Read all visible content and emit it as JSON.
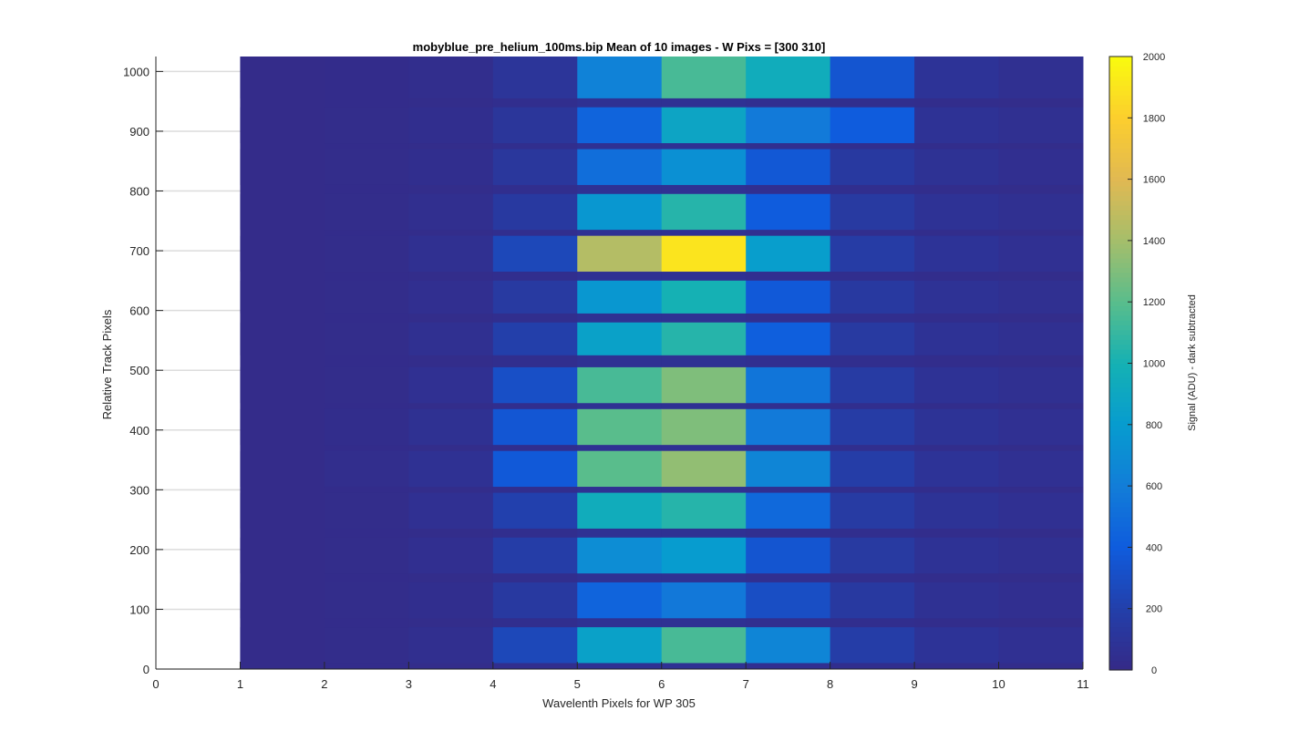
{
  "chart_data": {
    "type": "heatmap",
    "title": "mobyblue_pre_helium_100ms.bip  Mean of 10 images - W Pixs = [300  310]",
    "xlabel": "Wavelenth Pixels for WP 305",
    "ylabel": "Relative Track Pixels",
    "colorbar_label": "Signal (ADU) - dark subtracted",
    "xlim": [
      0,
      11
    ],
    "ylim": [
      0,
      1025
    ],
    "clim": [
      0,
      2000
    ],
    "colormap": "parula",
    "grid": "horizontal",
    "xticks": [
      "0",
      "1",
      "2",
      "3",
      "4",
      "5",
      "6",
      "7",
      "8",
      "9",
      "10",
      "11"
    ],
    "yticks": [
      "0",
      "100",
      "200",
      "300",
      "400",
      "500",
      "600",
      "700",
      "800",
      "900",
      "1000"
    ],
    "colorbar_ticks": [
      "0",
      "200",
      "400",
      "600",
      "800",
      "1000",
      "1200",
      "1400",
      "1600",
      "1800",
      "2000"
    ],
    "columns": [
      {
        "x_start": 1,
        "x_end": 2
      },
      {
        "x_start": 2,
        "x_end": 3
      },
      {
        "x_start": 3,
        "x_end": 4
      },
      {
        "x_start": 4,
        "x_end": 5
      },
      {
        "x_start": 5,
        "x_end": 6
      },
      {
        "x_start": 6,
        "x_end": 7
      },
      {
        "x_start": 7,
        "x_end": 8
      },
      {
        "x_start": 8,
        "x_end": 9
      },
      {
        "x_start": 9,
        "x_end": 10
      },
      {
        "x_start": 10,
        "x_end": 11
      }
    ],
    "background_values": [
      15,
      20,
      25,
      40,
      70,
      70,
      50,
      40,
      30,
      25
    ],
    "tracks": [
      {
        "y_start": 10,
        "y_end": 70,
        "values": [
          15,
          25,
          45,
          260,
          850,
          1150,
          650,
          180,
          90,
          60
        ]
      },
      {
        "y_start": 85,
        "y_end": 145,
        "values": [
          15,
          25,
          40,
          140,
          450,
          570,
          300,
          140,
          70,
          50
        ]
      },
      {
        "y_start": 160,
        "y_end": 220,
        "values": [
          15,
          25,
          50,
          180,
          700,
          800,
          350,
          150,
          80,
          55
        ]
      },
      {
        "y_start": 235,
        "y_end": 295,
        "values": [
          15,
          25,
          60,
          210,
          950,
          1050,
          480,
          160,
          85,
          60
        ]
      },
      {
        "y_start": 305,
        "y_end": 365,
        "values": [
          15,
          35,
          70,
          380,
          1200,
          1350,
          650,
          180,
          90,
          60
        ]
      },
      {
        "y_start": 375,
        "y_end": 435,
        "values": [
          15,
          30,
          65,
          360,
          1200,
          1300,
          580,
          170,
          85,
          60
        ]
      },
      {
        "y_start": 445,
        "y_end": 505,
        "values": [
          15,
          25,
          60,
          310,
          1150,
          1300,
          550,
          160,
          80,
          55
        ]
      },
      {
        "y_start": 525,
        "y_end": 580,
        "values": [
          15,
          25,
          55,
          200,
          850,
          1050,
          420,
          150,
          80,
          55
        ]
      },
      {
        "y_start": 595,
        "y_end": 650,
        "values": [
          15,
          25,
          50,
          150,
          770,
          1000,
          380,
          145,
          80,
          55
        ]
      },
      {
        "y_start": 665,
        "y_end": 725,
        "values": [
          15,
          25,
          55,
          260,
          1450,
          1900,
          820,
          170,
          90,
          60
        ]
      },
      {
        "y_start": 735,
        "y_end": 795,
        "values": [
          15,
          25,
          45,
          140,
          770,
          1050,
          400,
          150,
          80,
          55
        ]
      },
      {
        "y_start": 810,
        "y_end": 870,
        "values": [
          15,
          25,
          40,
          120,
          510,
          720,
          370,
          145,
          75,
          50
        ]
      },
      {
        "y_start": 880,
        "y_end": 940,
        "values": [
          15,
          25,
          40,
          110,
          450,
          880,
          580,
          400,
          80,
          55
        ]
      },
      {
        "y_start": 955,
        "y_end": 1025,
        "values": [
          15,
          20,
          35,
          100,
          630,
          1150,
          950,
          350,
          90,
          55
        ]
      }
    ]
  }
}
